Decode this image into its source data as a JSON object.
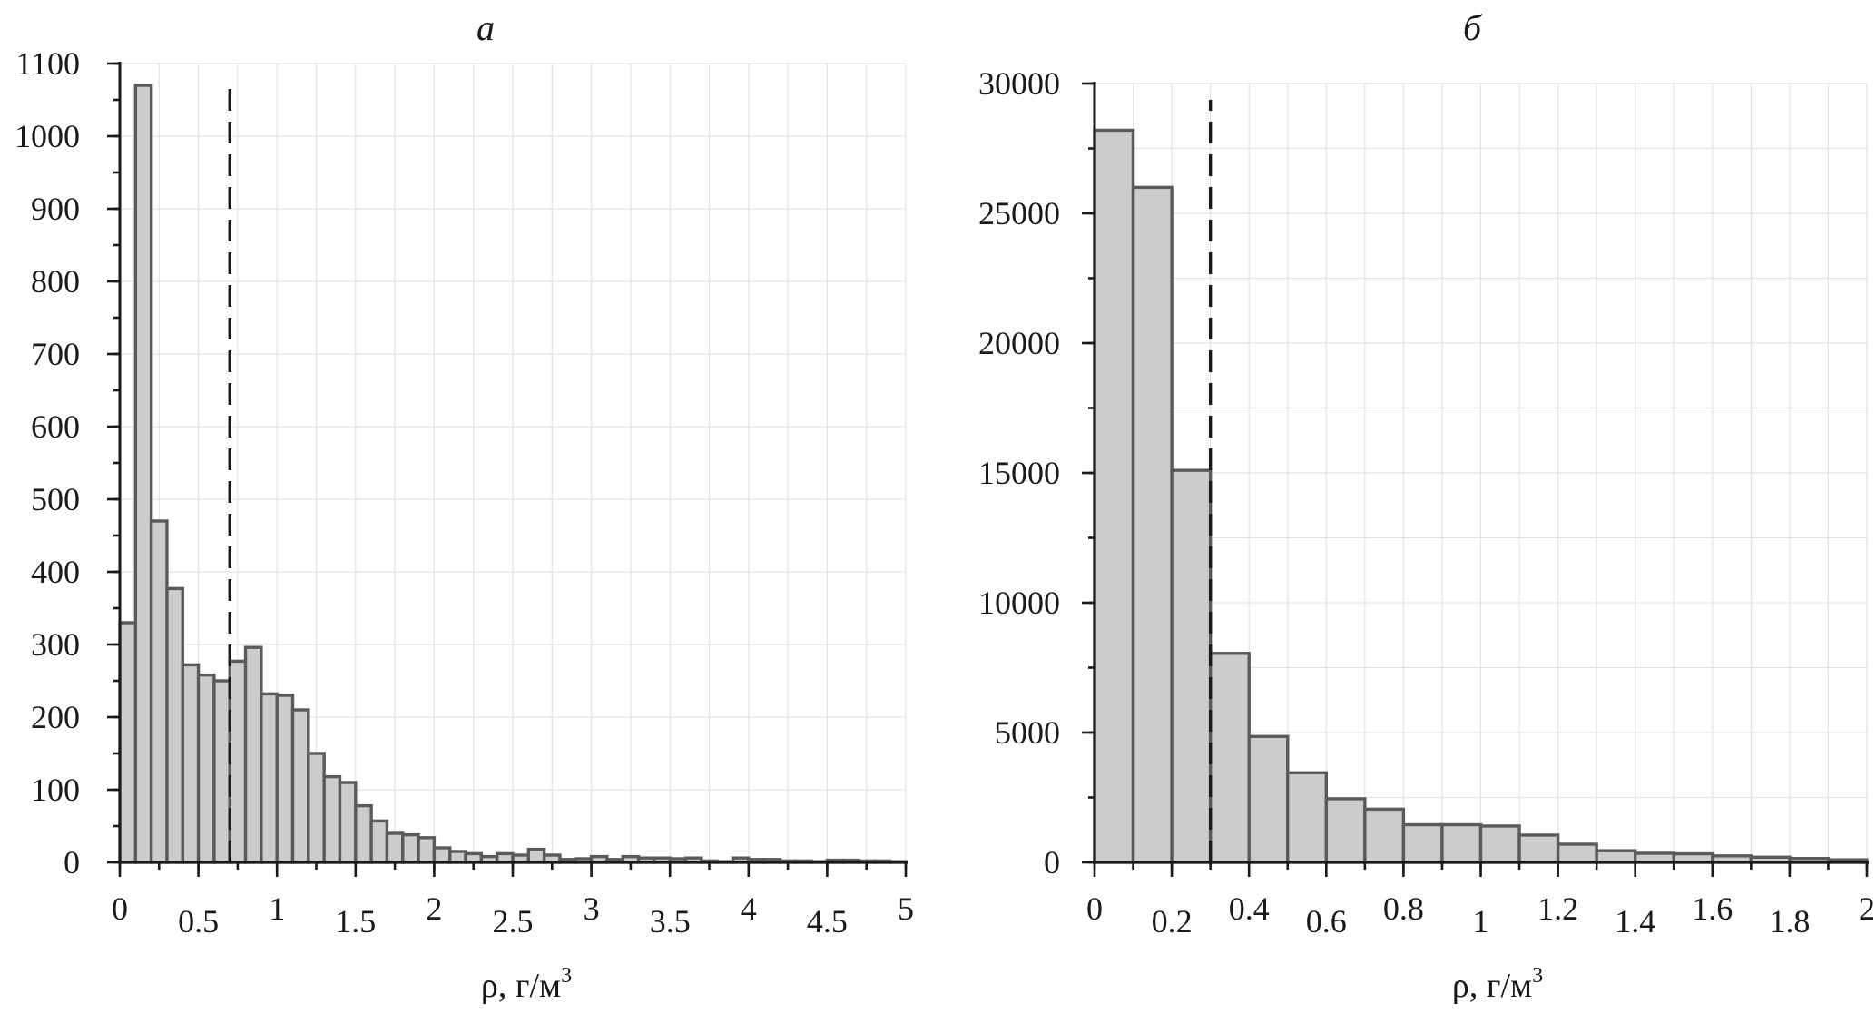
{
  "chart_data": [
    {
      "panel_label": "а",
      "type": "bar",
      "bin_width": 0.1,
      "bin_start": 0,
      "values": [
        330,
        1070,
        470,
        377,
        272,
        258,
        250,
        277,
        296,
        232,
        230,
        210,
        150,
        118,
        110,
        78,
        57,
        40,
        38,
        34,
        20,
        15,
        12,
        8,
        12,
        10,
        18,
        10,
        4,
        5,
        8,
        4,
        8,
        6,
        6,
        5,
        6,
        2,
        1,
        6,
        4,
        4,
        2,
        2,
        1,
        3,
        3,
        2,
        2,
        1
      ],
      "threshold_x": 0.7,
      "xlim": [
        0,
        5
      ],
      "ylim": [
        0,
        1100
      ],
      "xticks": [
        0,
        0.5,
        1,
        1.5,
        2,
        2.5,
        3,
        3.5,
        4,
        4.5,
        5
      ],
      "xtick_labels": [
        "0",
        "0.5",
        "1",
        "1.5",
        "2",
        "2.5",
        "3",
        "3.5",
        "4",
        "4.5",
        "5"
      ],
      "yticks": [
        0,
        100,
        200,
        300,
        400,
        500,
        600,
        700,
        800,
        900,
        1000,
        1100
      ],
      "ytick_labels": [
        "0",
        "100",
        "200",
        "300",
        "400",
        "500",
        "600",
        "700",
        "800",
        "900",
        "1000",
        "1100"
      ],
      "xlabel_main": "ρ, г/м",
      "xlabel_sup": "3",
      "ylabel": "",
      "grid": true,
      "colors": {
        "bar_fill": "#cccccc",
        "bar_edge": "#5a5a5a",
        "grid": "#e3e3e3"
      }
    },
    {
      "panel_label": "б",
      "type": "bar",
      "bin_width": 0.1,
      "bin_start": 0,
      "values": [
        28200,
        26000,
        15100,
        8050,
        4850,
        3450,
        2450,
        2050,
        1450,
        1450,
        1400,
        1050,
        700,
        450,
        350,
        330,
        250,
        200,
        150,
        100
      ],
      "threshold_x": 0.3,
      "xlim": [
        0,
        2
      ],
      "ylim": [
        0,
        30000
      ],
      "xticks": [
        0,
        0.2,
        0.4,
        0.6,
        0.8,
        1,
        1.2,
        1.4,
        1.6,
        1.8,
        2
      ],
      "xtick_labels": [
        "0",
        "0.2",
        "0.4",
        "0.6",
        "0.8",
        "1",
        "1.2",
        "1.4",
        "1.6",
        "1.8",
        "2"
      ],
      "yticks": [
        0,
        5000,
        10000,
        15000,
        20000,
        25000,
        30000
      ],
      "ytick_labels": [
        "0",
        "5000",
        "10000",
        "15000",
        "20000",
        "25000",
        "30000"
      ],
      "xlabel_main": "ρ, г/м",
      "xlabel_sup": "3",
      "ylabel": "",
      "grid": true,
      "colors": {
        "bar_fill": "#cccccc",
        "bar_edge": "#5a5a5a",
        "grid": "#e3e3e3"
      }
    }
  ]
}
